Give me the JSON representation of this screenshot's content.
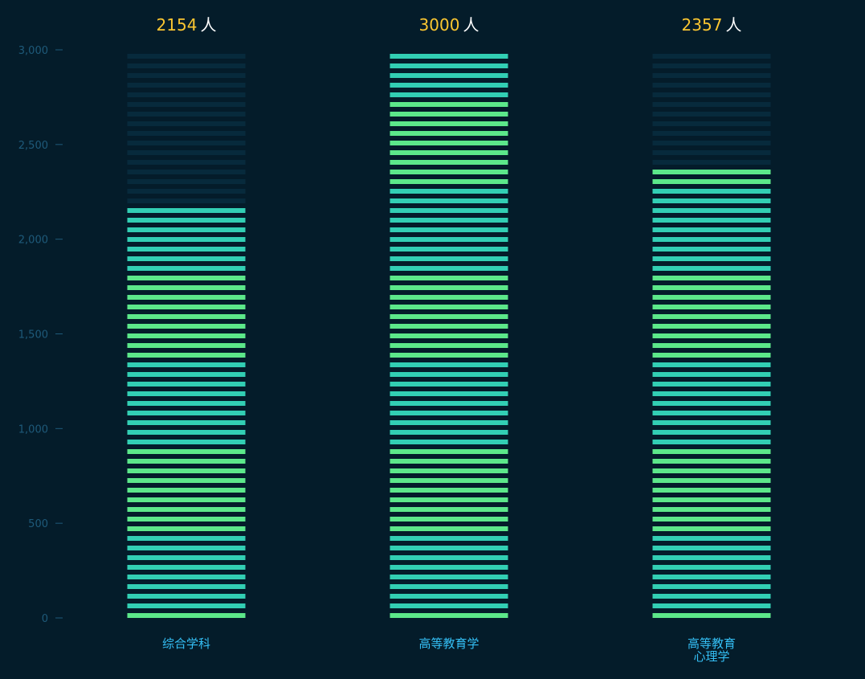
{
  "chart_data": {
    "type": "bar",
    "categories": [
      [
        "综合学科"
      ],
      [
        "高等教育学"
      ],
      [
        "高等教育",
        "心理学"
      ]
    ],
    "values": [
      2154,
      3000,
      2357
    ],
    "value_unit": "人",
    "y_ticks": [
      "0",
      "500",
      "1,000",
      "1,500",
      "2,000",
      "2,500",
      "3,000"
    ],
    "ylim": [
      0,
      3000
    ],
    "grid": false,
    "legend": "none",
    "title": "",
    "xlabel": "",
    "ylabel": ""
  },
  "colors": {
    "background": "#041c2a",
    "track": "#072a3c",
    "fill_teal": "#32cfb4",
    "fill_green": "#5ce88a",
    "value_number": "#fbc631",
    "value_unit": "#ffffff",
    "axis_text": "#1e5a7a",
    "axis_tick": "#1e5a7a",
    "category_label": "#34bff5"
  }
}
